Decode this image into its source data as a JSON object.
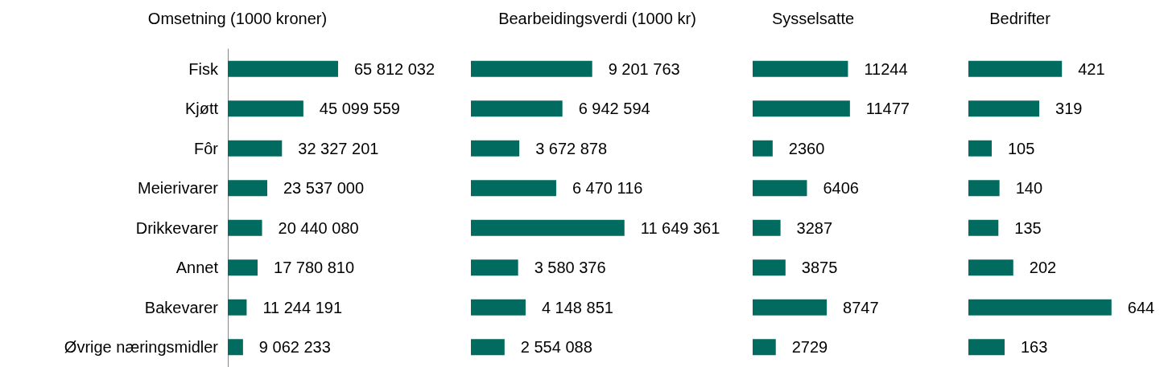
{
  "chart_data": [
    {
      "type": "bar",
      "orientation": "horizontal",
      "title": "Omsetning (1000 kroner)",
      "categories": [
        "Fisk",
        "Kjøtt",
        "Fôr",
        "Meierivarer",
        "Drikkevarer",
        "Annet",
        "Bakevarer",
        "Øvrige næringsmidler"
      ],
      "values": [
        65812032,
        45099559,
        32327201,
        23537000,
        20440080,
        17780810,
        11244191,
        9062233
      ],
      "color": "#006b5e",
      "value_labels": [
        "65 812 032",
        "45 099 559",
        "32 327 201",
        "23 537 000",
        "20 440 080",
        "17 780 810",
        "11 244 191",
        "9 062 233"
      ],
      "tick_labels": "y"
    },
    {
      "type": "bar",
      "orientation": "horizontal",
      "title": "Bearbeidingsverdi (1000 kr)",
      "categories": [
        null,
        null,
        null,
        null,
        null,
        null,
        null,
        null
      ],
      "values": [
        9201763,
        6942594,
        3672878,
        6470116,
        11649361,
        3580376,
        4148851,
        2554088
      ],
      "color": "#006b5e",
      "value_labels": [
        "9 201 763",
        "6 942 594",
        "3 672 878",
        "6 470 116",
        "11 649 361",
        "3 580 376",
        "4 148 851",
        "2 554 088"
      ],
      "tick_labels": false
    },
    {
      "type": "bar",
      "orientation": "horizontal",
      "title": "Sysselsatte",
      "categories": [
        null,
        null,
        null,
        null,
        null,
        null,
        null,
        null
      ],
      "values": [
        11244,
        11477,
        2360,
        6406,
        3287,
        3875,
        8747,
        2729
      ],
      "color": "#006b5e",
      "data_labels": true,
      "tick_labels": false
    },
    {
      "type": "bar",
      "orientation": "horizontal",
      "title": "Bedrifter",
      "categories": [
        null,
        null,
        null,
        null,
        null,
        null,
        null,
        null
      ],
      "values": [
        421,
        319,
        105,
        140,
        135,
        202,
        644,
        163
      ],
      "color": "#006b5e",
      "data_labels": true,
      "tick_labels": false
    }
  ]
}
